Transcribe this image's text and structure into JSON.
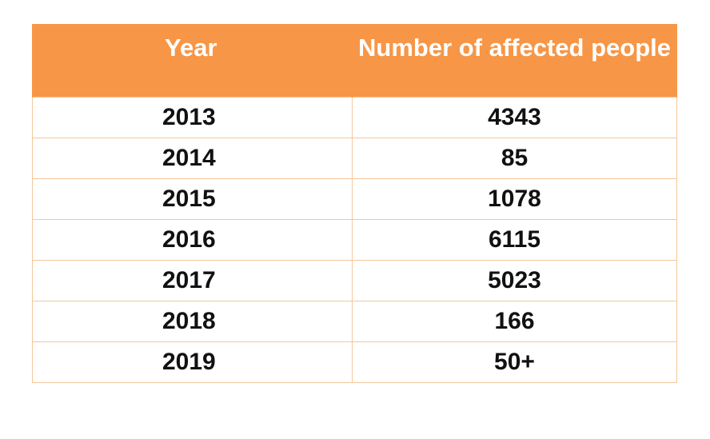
{
  "table": {
    "columns": [
      "Year",
      "Number of affected people"
    ],
    "header_color": "#f79646",
    "border_color": "#f5c79b",
    "rows": [
      {
        "year": "2013",
        "affected": "4343"
      },
      {
        "year": "2014",
        "affected": "85"
      },
      {
        "year": "2015",
        "affected": "1078"
      },
      {
        "year": "2016",
        "affected": "6115"
      },
      {
        "year": "2017",
        "affected": "5023"
      },
      {
        "year": "2018",
        "affected": "166"
      },
      {
        "year": "2019",
        "affected": "50+"
      }
    ]
  }
}
